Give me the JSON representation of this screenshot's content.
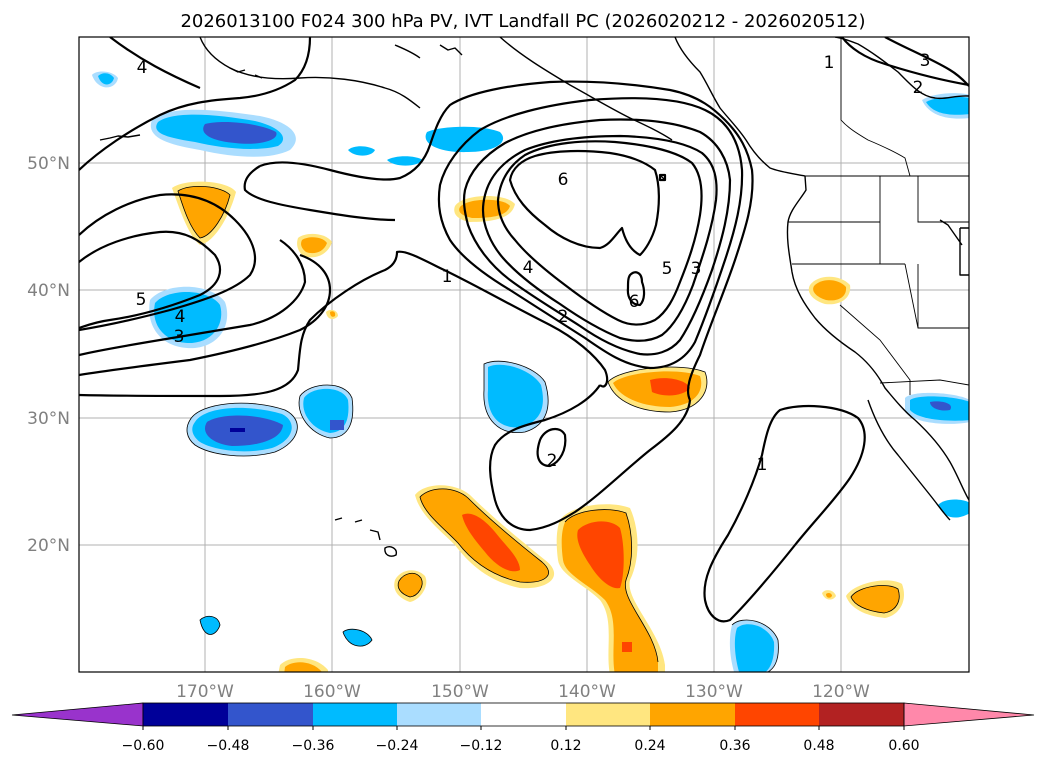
{
  "title": "2026013100 F024 300 hPa PV, IVT Landfall PC (2026020212 - 2026020512)",
  "colors": {
    "neg_extend": "#9933cc",
    "blue_levels": [
      "#000099",
      "#3355cc",
      "#00bbff",
      "#aaddff"
    ],
    "white": "#ffffff",
    "warm_levels": [
      "#ffe680",
      "#ffa500",
      "#ff4500",
      "#b22222"
    ],
    "pos_extend": "#ff88aa",
    "contour": "#000000",
    "grid": "#b0b0b0"
  },
  "map": {
    "lon_ticks": [
      "170°W",
      "160°W",
      "150°W",
      "140°W",
      "130°W",
      "120°W"
    ],
    "lat_ticks": [
      "50°N",
      "40°N",
      "30°N",
      "20°N"
    ]
  },
  "colorbar": {
    "ticks": [
      "−0.60",
      "−0.48",
      "−0.36",
      "−0.24",
      "−0.12",
      "0.12",
      "0.24",
      "0.36",
      "0.48",
      "0.60"
    ]
  },
  "contour_labels": [
    "4",
    "5",
    "4",
    "3",
    "1",
    "6",
    "4",
    "2",
    "5",
    "3",
    "6",
    "1",
    "2",
    "2",
    "3",
    "1"
  ]
}
